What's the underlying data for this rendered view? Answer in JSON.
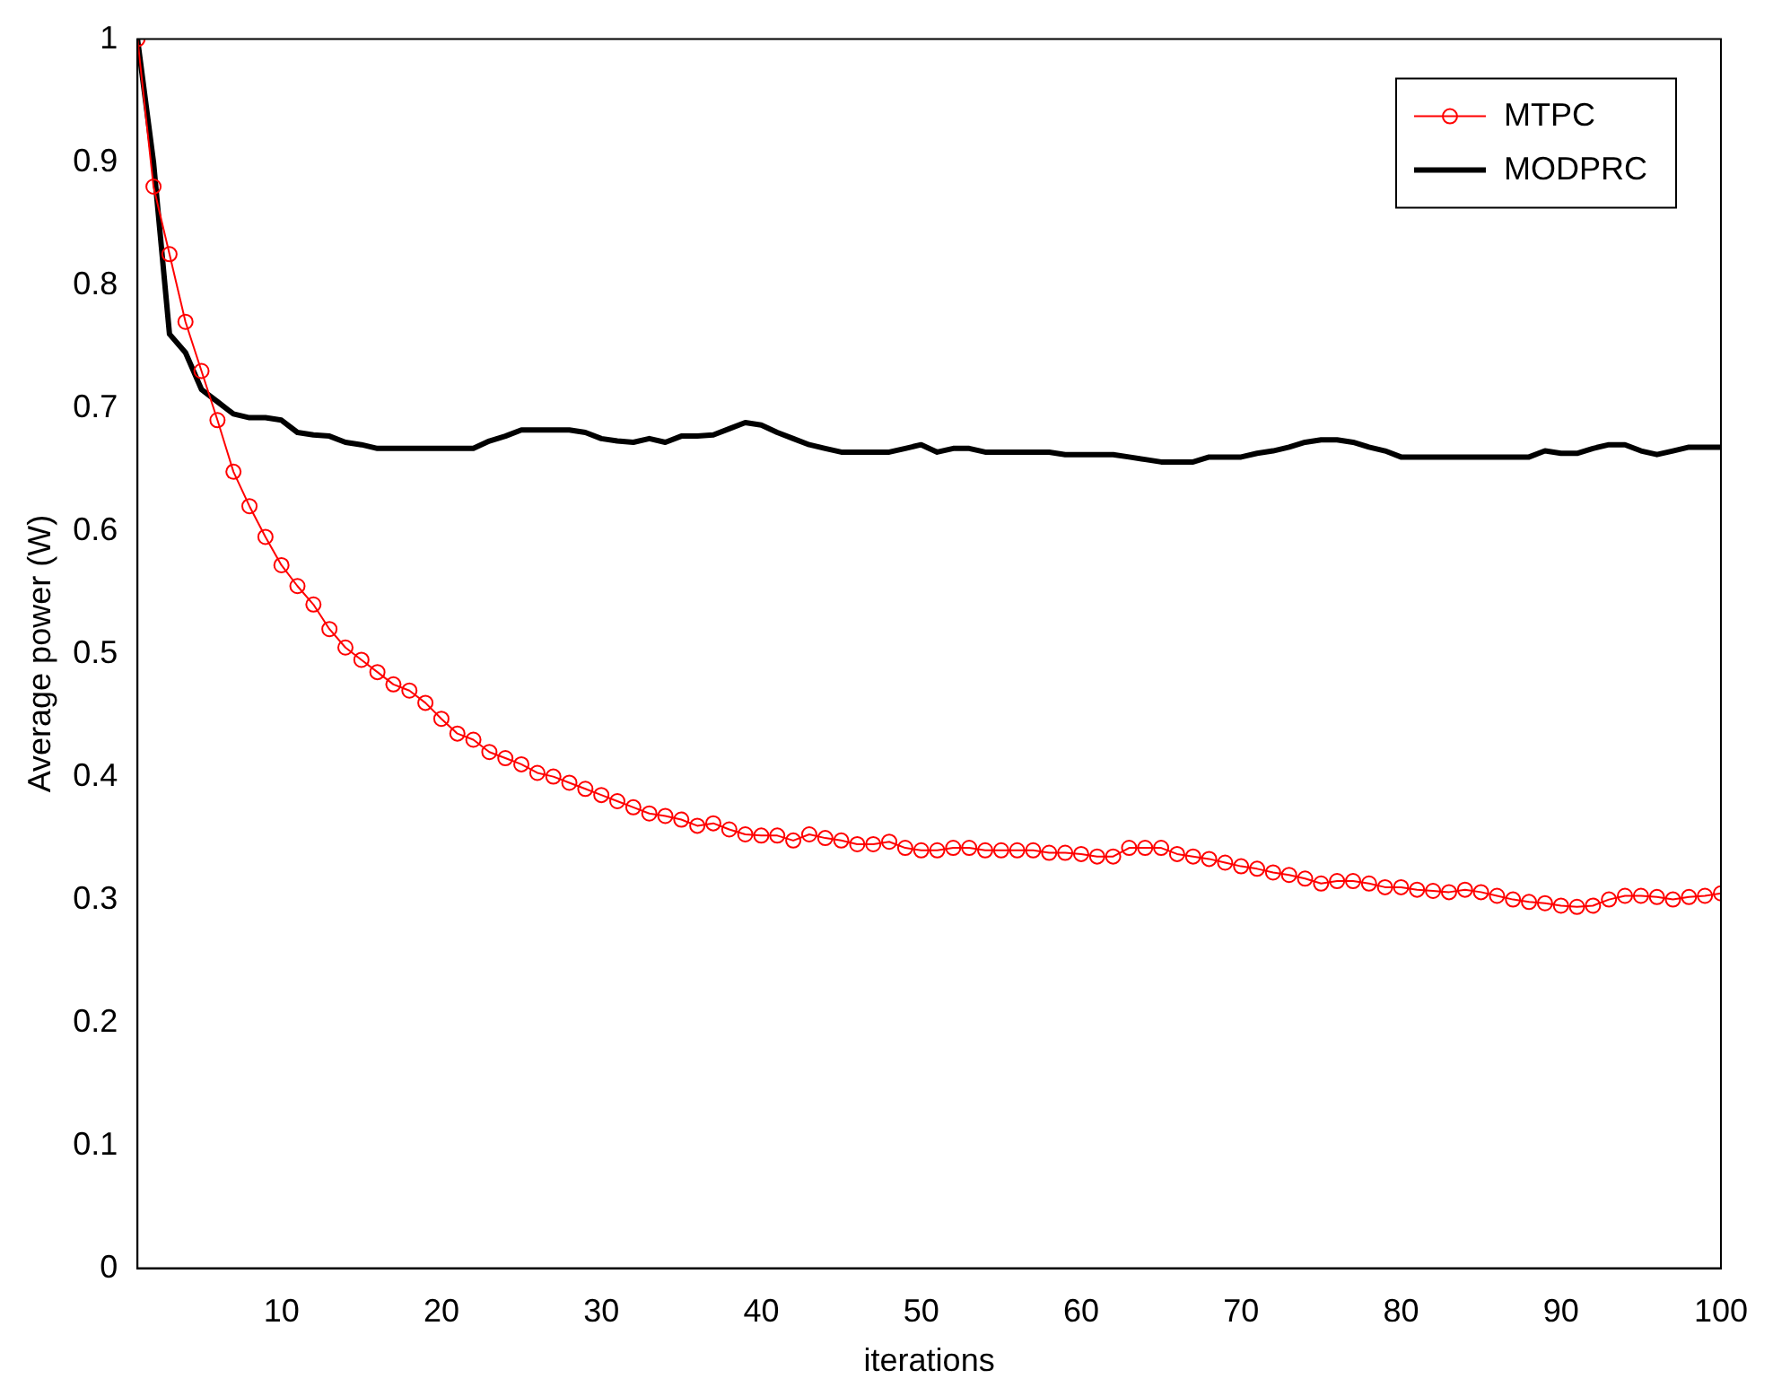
{
  "chart_data": {
    "type": "line",
    "xlabel": "iterations",
    "ylabel": "Average power (W)",
    "x": [
      1,
      2,
      3,
      4,
      5,
      6,
      7,
      8,
      9,
      10,
      11,
      12,
      13,
      14,
      15,
      16,
      17,
      18,
      19,
      20,
      21,
      22,
      23,
      24,
      25,
      26,
      27,
      28,
      29,
      30,
      31,
      32,
      33,
      34,
      35,
      36,
      37,
      38,
      39,
      40,
      41,
      42,
      43,
      44,
      45,
      46,
      47,
      48,
      49,
      50,
      51,
      52,
      53,
      54,
      55,
      56,
      57,
      58,
      59,
      60,
      61,
      62,
      63,
      64,
      65,
      66,
      67,
      68,
      69,
      70,
      71,
      72,
      73,
      74,
      75,
      76,
      77,
      78,
      79,
      80,
      81,
      82,
      83,
      84,
      85,
      86,
      87,
      88,
      89,
      90,
      91,
      92,
      93,
      94,
      95,
      96,
      97,
      98,
      99,
      100
    ],
    "series": [
      {
        "name": "MTPC",
        "color": "#ff0000",
        "marker": "circle",
        "values": [
          1.0,
          0.88,
          0.825,
          0.77,
          0.73,
          0.69,
          0.648,
          0.62,
          0.595,
          0.572,
          0.555,
          0.54,
          0.52,
          0.505,
          0.495,
          0.485,
          0.475,
          0.47,
          0.46,
          0.447,
          0.435,
          0.43,
          0.42,
          0.415,
          0.41,
          0.403,
          0.4,
          0.395,
          0.39,
          0.385,
          0.38,
          0.375,
          0.37,
          0.368,
          0.365,
          0.36,
          0.362,
          0.357,
          0.353,
          0.352,
          0.352,
          0.348,
          0.353,
          0.35,
          0.348,
          0.345,
          0.345,
          0.347,
          0.342,
          0.34,
          0.34,
          0.342,
          0.342,
          0.34,
          0.34,
          0.34,
          0.34,
          0.338,
          0.338,
          0.337,
          0.335,
          0.335,
          0.342,
          0.342,
          0.342,
          0.337,
          0.335,
          0.333,
          0.33,
          0.327,
          0.325,
          0.322,
          0.32,
          0.317,
          0.313,
          0.315,
          0.315,
          0.313,
          0.31,
          0.31,
          0.308,
          0.307,
          0.306,
          0.308,
          0.306,
          0.303,
          0.3,
          0.298,
          0.297,
          0.295,
          0.294,
          0.295,
          0.3,
          0.303,
          0.303,
          0.302,
          0.3,
          0.302,
          0.303,
          0.305
        ]
      },
      {
        "name": "MODPRC",
        "color": "#000000",
        "marker": "none",
        "values": [
          1.0,
          0.9,
          0.76,
          0.745,
          0.715,
          0.705,
          0.695,
          0.692,
          0.692,
          0.69,
          0.68,
          0.678,
          0.677,
          0.672,
          0.67,
          0.667,
          0.667,
          0.667,
          0.667,
          0.667,
          0.667,
          0.667,
          0.673,
          0.677,
          0.682,
          0.682,
          0.682,
          0.682,
          0.68,
          0.675,
          0.673,
          0.672,
          0.675,
          0.672,
          0.677,
          0.677,
          0.678,
          0.683,
          0.688,
          0.686,
          0.68,
          0.675,
          0.67,
          0.667,
          0.664,
          0.664,
          0.664,
          0.664,
          0.667,
          0.67,
          0.664,
          0.667,
          0.667,
          0.664,
          0.664,
          0.664,
          0.664,
          0.664,
          0.662,
          0.662,
          0.662,
          0.662,
          0.66,
          0.658,
          0.656,
          0.656,
          0.656,
          0.66,
          0.66,
          0.66,
          0.663,
          0.665,
          0.668,
          0.672,
          0.674,
          0.674,
          0.672,
          0.668,
          0.665,
          0.66,
          0.66,
          0.66,
          0.66,
          0.66,
          0.66,
          0.66,
          0.66,
          0.66,
          0.665,
          0.663,
          0.663,
          0.667,
          0.67,
          0.67,
          0.665,
          0.662,
          0.665,
          0.668,
          0.668,
          0.668
        ]
      }
    ],
    "xlim": [
      1,
      100
    ],
    "xticks": [
      10,
      20,
      30,
      40,
      50,
      60,
      70,
      80,
      90,
      100
    ],
    "ylim": [
      0,
      1
    ],
    "yticks": [
      0,
      0.1,
      0.2,
      0.3,
      0.4,
      0.5,
      0.6,
      0.7,
      0.8,
      0.9,
      1
    ],
    "grid": false,
    "legend": "top right",
    "line_style": "solid"
  }
}
